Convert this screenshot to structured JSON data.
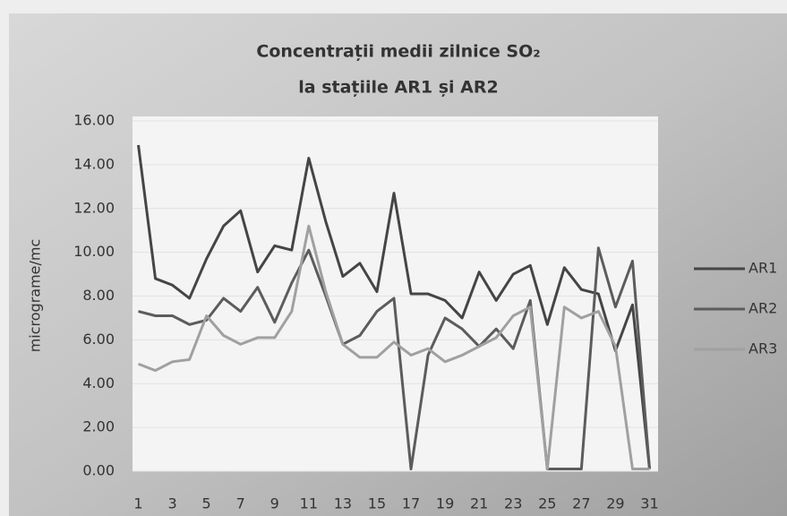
{
  "chart_data": {
    "type": "line",
    "title": "Concentrații medii zilnice SO₂",
    "subtitle": "la stațiile AR1 și AR2",
    "y_label": "micrograme/mc",
    "categories": [
      "1",
      null,
      "3",
      null,
      "5",
      null,
      "7",
      null,
      "9",
      null,
      "11",
      null,
      "13",
      null,
      "15",
      null,
      "17",
      null,
      "19",
      null,
      "21",
      null,
      "23",
      null,
      "25",
      null,
      "27",
      null,
      "29",
      null,
      "31"
    ],
    "series": [
      {
        "name": "AR1",
        "color": "#454545",
        "values": [
          14.9,
          8.8,
          8.5,
          7.9,
          9.7,
          11.2,
          11.9,
          9.1,
          10.3,
          10.1,
          14.3,
          11.4,
          8.9,
          9.5,
          8.2,
          12.7,
          8.1,
          8.1,
          7.8,
          7.0,
          9.1,
          7.8,
          9.0,
          9.4,
          6.7,
          9.3,
          8.3,
          8.1,
          5.5,
          7.6,
          0.1
        ]
      },
      {
        "name": "AR2",
        "color": "#5c5c5c",
        "values": [
          7.3,
          7.1,
          7.1,
          6.7,
          6.9,
          7.9,
          7.3,
          8.4,
          6.8,
          8.6,
          10.1,
          8.0,
          5.8,
          6.2,
          7.3,
          7.9,
          0.1,
          5.3,
          7.0,
          6.5,
          5.7,
          6.5,
          5.6,
          7.8,
          0.1,
          0.1,
          0.1,
          10.2,
          7.5,
          9.6,
          0.1
        ]
      },
      {
        "name": "AR3",
        "color": "#a0a0a0",
        "values": [
          4.9,
          4.6,
          5.0,
          5.1,
          7.1,
          6.2,
          5.8,
          6.1,
          6.1,
          7.3,
          11.2,
          8.2,
          5.8,
          5.2,
          5.2,
          5.9,
          5.3,
          5.6,
          5.0,
          5.3,
          5.7,
          6.1,
          7.1,
          7.5,
          0.1,
          7.5,
          7.0,
          7.3,
          5.7,
          0.1,
          0.1
        ]
      }
    ],
    "ylim": [
      0,
      16
    ],
    "yticks": [
      {
        "value": 0,
        "label": "0.00"
      },
      {
        "value": 2,
        "label": "2.00"
      },
      {
        "value": 4,
        "label": "4.00"
      },
      {
        "value": 6,
        "label": "6.00"
      },
      {
        "value": 8,
        "label": "8.00"
      },
      {
        "value": 10,
        "label": "10.00"
      },
      {
        "value": 12,
        "label": "12.00"
      },
      {
        "value": 14,
        "label": "14.00"
      },
      {
        "value": 16,
        "label": "16.00"
      }
    ],
    "legend": "right"
  }
}
